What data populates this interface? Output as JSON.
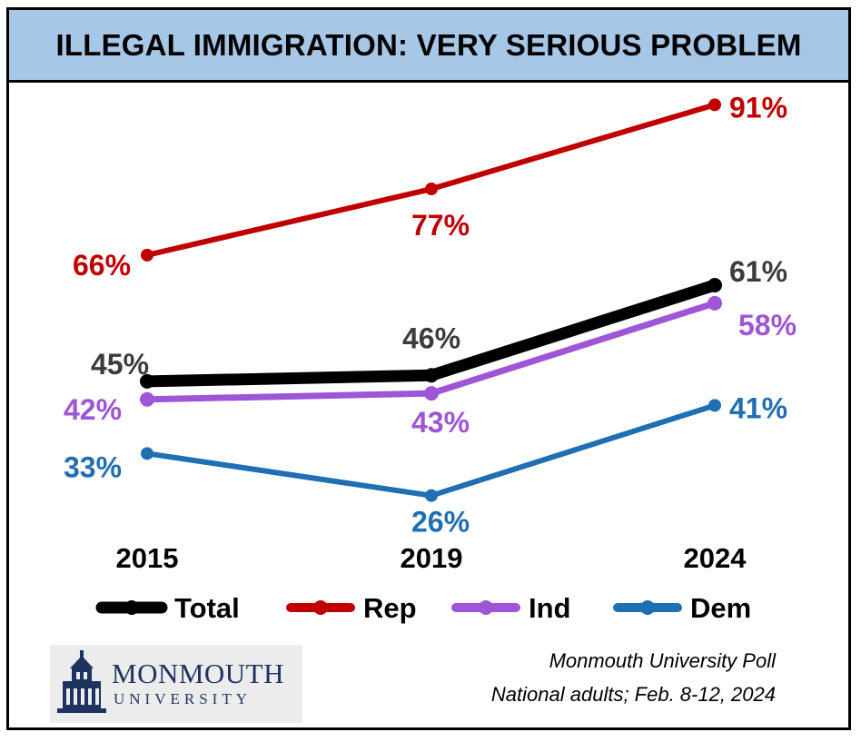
{
  "title": "ILLEGAL IMMIGRATION: VERY SERIOUS PROBLEM",
  "credit": {
    "line1": "Monmouth University Poll",
    "line2": "National adults; Feb. 8-12, 2024"
  },
  "logo": {
    "wordmark": "MONMOUTH",
    "sub": "UNIVERSITY"
  },
  "colors": {
    "total": "#000000",
    "rep": "#c00000",
    "ind": "#9e55d6",
    "dem": "#1f6fb2",
    "total_label": "#3c3c3c",
    "title_band": "#a7c7e7",
    "logo_navy": "#1d3461"
  },
  "chart_data": {
    "type": "line",
    "title": "ILLEGAL IMMIGRATION: VERY SERIOUS PROBLEM",
    "xlabel": "",
    "ylabel": "",
    "categories": [
      "2015",
      "2019",
      "2024"
    ],
    "series": [
      {
        "name": "Total",
        "values": [
          45,
          46,
          61
        ],
        "labels": [
          "45%",
          "46%",
          "61%"
        ]
      },
      {
        "name": "Rep",
        "values": [
          66,
          77,
          91
        ],
        "labels": [
          "66%",
          "77%",
          "91%"
        ]
      },
      {
        "name": "Ind",
        "values": [
          42,
          43,
          58
        ],
        "labels": [
          "42%",
          "43%",
          "58%"
        ]
      },
      {
        "name": "Dem",
        "values": [
          33,
          26,
          41
        ],
        "labels": [
          "33%",
          "26%",
          "41%"
        ]
      }
    ],
    "grid": false,
    "legend": "bottom"
  }
}
